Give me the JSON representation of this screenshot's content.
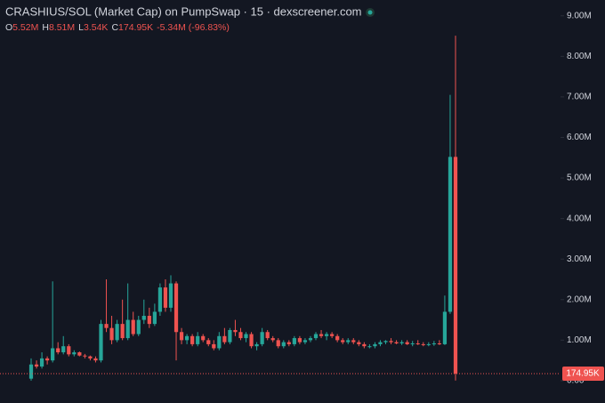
{
  "header": {
    "title": "CRASHIUS/SOL (Market Cap) on PumpSwap · 15 · dexscreener.com",
    "ohlc": [
      {
        "key": "O",
        "value": "5.52M"
      },
      {
        "key": "H",
        "value": "8.51M"
      },
      {
        "key": "L",
        "value": "3.54K"
      },
      {
        "key": "C",
        "value": "174.95K"
      }
    ],
    "change": "-5.34M (-96.83%)"
  },
  "chart_data": {
    "type": "candlestick",
    "up_color": "#26a69a",
    "down_color": "#ef5350",
    "ylim": [
      -0.55,
      9.39
    ],
    "yticks": [
      {
        "value": 0,
        "label": "0.00"
      },
      {
        "value": 1,
        "label": "1.00M"
      },
      {
        "value": 2,
        "label": "2.00M"
      },
      {
        "value": 3,
        "label": "3.00M"
      },
      {
        "value": 4,
        "label": "4.00M"
      },
      {
        "value": 5,
        "label": "5.00M"
      },
      {
        "value": 6,
        "label": "6.00M"
      },
      {
        "value": 7,
        "label": "7.00M"
      },
      {
        "value": 8,
        "label": "8.00M"
      },
      {
        "value": 9,
        "label": "9.00M"
      }
    ],
    "last_price": {
      "value": 0.17495,
      "label": "174.95K"
    },
    "open": [
      0.05,
      0.4,
      0.35,
      0.55,
      0.5,
      0.8,
      0.7,
      0.85,
      0.65,
      0.7,
      0.62,
      0.6,
      0.55,
      0.5,
      1.4,
      1.3,
      1.0,
      1.4,
      1.05,
      1.5,
      1.15,
      1.5,
      1.6,
      1.4,
      1.7,
      2.3,
      1.8,
      2.4,
      1.2,
      1.0,
      1.1,
      0.9,
      1.1,
      1.0,
      0.9,
      0.8,
      1.1,
      0.95,
      1.25,
      1.2,
      1.05,
      1.15,
      0.85,
      0.9,
      1.2,
      1.05,
      1.0,
      0.85,
      0.95,
      0.9,
      1.05,
      0.95,
      1.0,
      1.05,
      1.15,
      1.1,
      1.15,
      1.1,
      1.0,
      0.95,
      1.0,
      0.95,
      0.9,
      0.85,
      0.85,
      0.9,
      0.95,
      0.98,
      0.95,
      0.92,
      0.95,
      0.9,
      0.92,
      0.9,
      0.88,
      0.9,
      0.92,
      0.9,
      1.7,
      5.52
    ],
    "high": [
      0.55,
      0.5,
      0.7,
      0.6,
      2.45,
      0.95,
      1.1,
      0.9,
      0.75,
      0.72,
      0.66,
      0.62,
      0.6,
      1.5,
      2.5,
      1.6,
      1.5,
      2.0,
      2.4,
      1.7,
      1.6,
      2.0,
      1.8,
      1.9,
      2.4,
      2.5,
      2.6,
      2.45,
      1.3,
      1.15,
      1.15,
      1.2,
      1.15,
      1.05,
      1.0,
      1.2,
      1.3,
      1.3,
      1.5,
      1.3,
      1.2,
      1.2,
      0.95,
      1.3,
      1.25,
      1.1,
      1.05,
      1.0,
      1.0,
      1.1,
      1.1,
      1.05,
      1.1,
      1.2,
      1.25,
      1.2,
      1.2,
      1.15,
      1.05,
      1.05,
      1.05,
      1.0,
      0.95,
      0.9,
      0.95,
      1.0,
      1.0,
      1.05,
      1.0,
      1.0,
      1.0,
      0.98,
      1.0,
      0.95,
      0.95,
      0.98,
      1.0,
      2.1,
      7.05,
      8.51
    ],
    "low": [
      0.0,
      0.3,
      0.3,
      0.4,
      0.45,
      0.65,
      0.65,
      0.6,
      0.6,
      0.6,
      0.55,
      0.5,
      0.45,
      0.45,
      1.2,
      0.9,
      0.95,
      1.0,
      1.0,
      1.1,
      1.1,
      1.4,
      1.3,
      1.35,
      1.6,
      1.7,
      1.7,
      0.5,
      0.9,
      0.9,
      0.85,
      0.85,
      0.95,
      0.85,
      0.75,
      0.75,
      0.9,
      0.9,
      1.1,
      1.0,
      0.95,
      0.8,
      0.75,
      0.85,
      1.0,
      0.95,
      0.8,
      0.8,
      0.85,
      0.85,
      0.9,
      0.9,
      0.95,
      1.0,
      1.05,
      1.0,
      1.05,
      0.95,
      0.9,
      0.9,
      0.9,
      0.85,
      0.8,
      0.8,
      0.8,
      0.85,
      0.9,
      0.9,
      0.9,
      0.88,
      0.88,
      0.85,
      0.88,
      0.85,
      0.85,
      0.86,
      0.88,
      0.88,
      1.65,
      0.00354
    ],
    "close": [
      0.4,
      0.35,
      0.55,
      0.5,
      0.8,
      0.7,
      0.85,
      0.65,
      0.7,
      0.62,
      0.6,
      0.55,
      0.5,
      1.4,
      1.3,
      1.0,
      1.4,
      1.05,
      1.5,
      1.15,
      1.5,
      1.6,
      1.4,
      1.7,
      2.3,
      1.8,
      2.4,
      1.2,
      1.0,
      1.1,
      0.9,
      1.1,
      1.0,
      0.9,
      0.8,
      1.1,
      0.95,
      1.25,
      1.2,
      1.05,
      1.15,
      0.85,
      0.9,
      1.2,
      1.05,
      1.0,
      0.85,
      0.95,
      0.9,
      1.05,
      0.95,
      1.0,
      1.05,
      1.15,
      1.1,
      1.15,
      1.1,
      1.0,
      0.95,
      1.0,
      0.95,
      0.9,
      0.85,
      0.85,
      0.9,
      0.95,
      0.98,
      0.95,
      0.92,
      0.95,
      0.9,
      0.92,
      0.9,
      0.88,
      0.9,
      0.92,
      0.9,
      1.7,
      5.52,
      0.17495
    ]
  }
}
